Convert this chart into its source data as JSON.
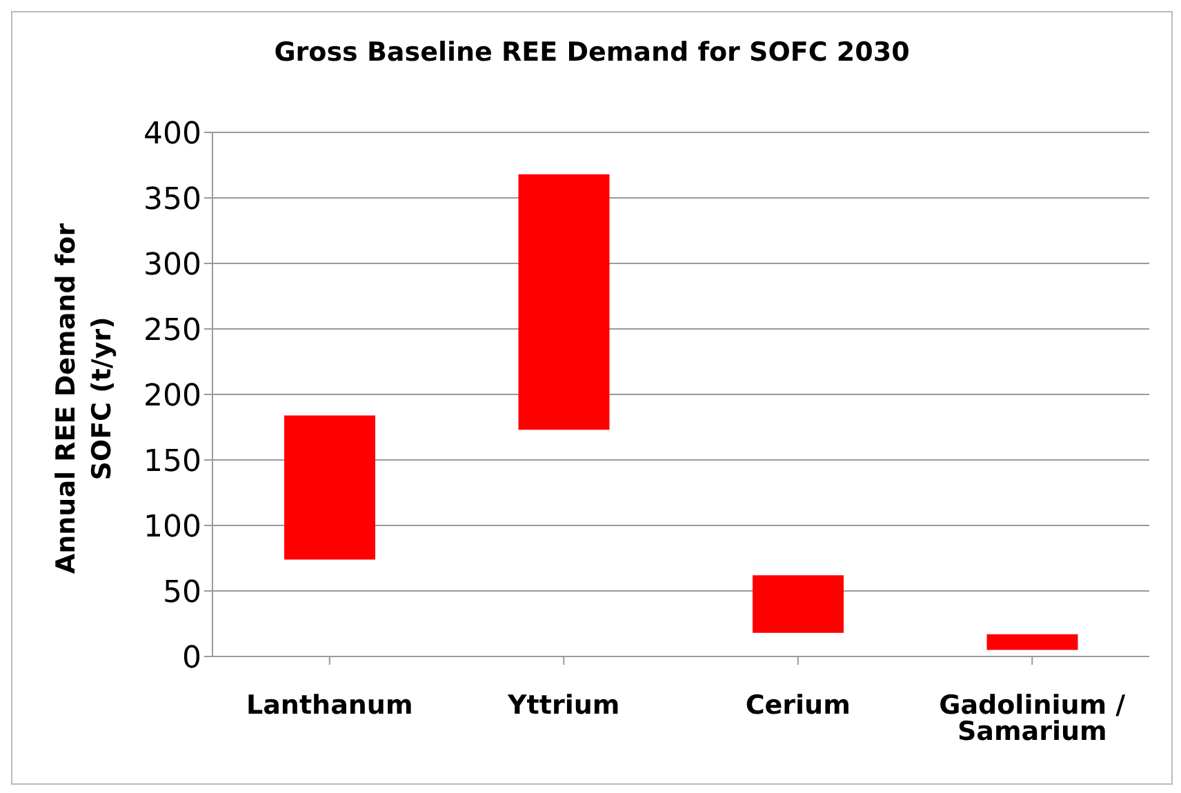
{
  "chart_data": {
    "type": "bar",
    "title": "Gross Baseline REE Demand for SOFC 2030",
    "ylabel": "Annual REE Demand for SOFC (t/yr)",
    "categories": [
      "Lanthanum",
      "Yttrium",
      "Cerium",
      "Gadolinium / Samarium"
    ],
    "base": [
      74,
      173,
      18,
      5
    ],
    "values": [
      110,
      195,
      44,
      12
    ],
    "color": "#ff0000",
    "ylim": [
      0,
      400
    ],
    "yticks": [
      0,
      50,
      100,
      150,
      200,
      250,
      300,
      350,
      400
    ],
    "grid": "y"
  }
}
